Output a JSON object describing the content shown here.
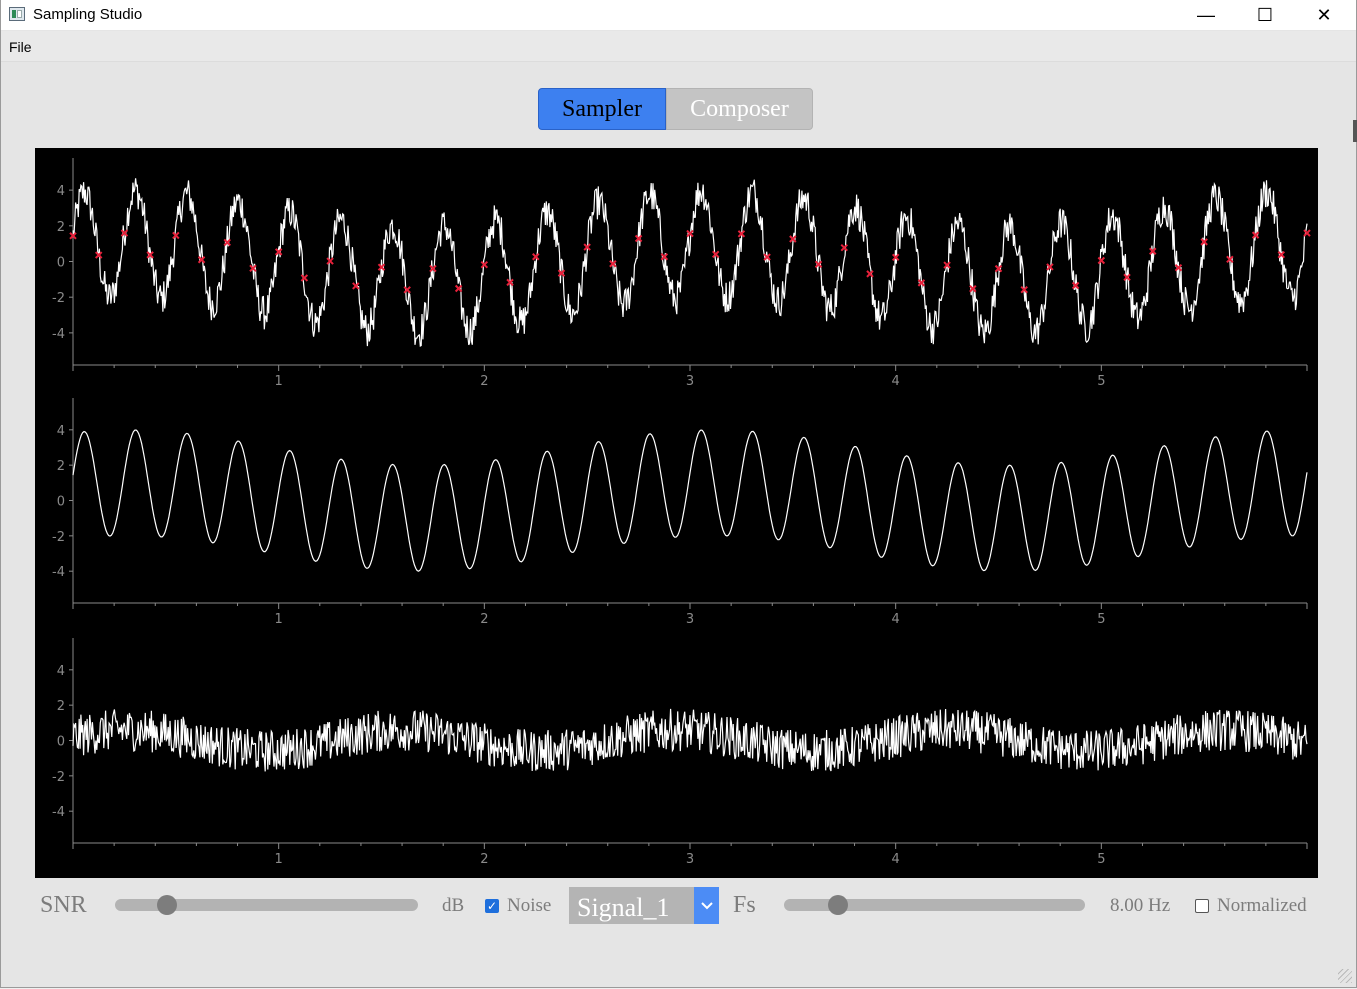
{
  "window": {
    "title": "Sampling Studio",
    "controls": {
      "minimize": "—",
      "maximize": "☐",
      "close": "✕"
    }
  },
  "menu": {
    "items": [
      "File"
    ]
  },
  "tabs": [
    {
      "label": "Sampler",
      "active": true
    },
    {
      "label": "Composer",
      "active": false
    }
  ],
  "colors": {
    "accent": "#3d80f0",
    "plot_bg": "#000000",
    "signal": "#ffffff",
    "samples": "#e8213b",
    "axis": "#8a8a8a"
  },
  "chart_data": [
    {
      "type": "line",
      "title": "",
      "xlabel": "",
      "ylabel": "",
      "xlim": [
        0,
        6.0
      ],
      "ylim": [
        -5.8,
        5.8
      ],
      "x_ticks": [
        1,
        2,
        3,
        4,
        5
      ],
      "y_ticks": [
        4,
        2,
        0,
        -2,
        -4
      ],
      "series": [
        {
          "signal": "sum of sinusoids + noise",
          "components": [
            {
              "amp": 3.0,
              "freq_hz": 4.0,
              "phase": 0.2
            },
            {
              "amp": 1.0,
              "freq_hz": 0.35,
              "phase": 1.0
            }
          ],
          "noise_amp": 1.2
        }
      ],
      "samples": {
        "rate_hz": 8.0,
        "marker": "x"
      }
    },
    {
      "type": "line",
      "title": "",
      "xlabel": "",
      "ylabel": "",
      "xlim": [
        0,
        6.0
      ],
      "ylim": [
        -5.8,
        5.8
      ],
      "x_ticks": [
        1,
        2,
        3,
        4,
        5
      ],
      "y_ticks": [
        4,
        2,
        0,
        -2,
        -4
      ],
      "series": [
        {
          "signal": "reconstructed",
          "components": [
            {
              "amp": 3.0,
              "freq_hz": 4.0,
              "phase": 0.2
            },
            {
              "amp": 1.0,
              "freq_hz": 0.35,
              "phase": 1.0
            }
          ],
          "noise_amp": 0
        }
      ]
    },
    {
      "type": "line",
      "title": "",
      "xlabel": "",
      "ylabel": "",
      "xlim": [
        0,
        6.0
      ],
      "ylim": [
        -5.8,
        5.8
      ],
      "x_ticks": [
        1,
        2,
        3,
        4,
        5
      ],
      "y_ticks": [
        4,
        2,
        0,
        -2,
        -4
      ],
      "series": [
        {
          "signal": "error",
          "components": [
            {
              "amp": 0.6,
              "freq_hz": 0.75,
              "phase": 0.3
            }
          ],
          "noise_amp": 1.5
        }
      ]
    }
  ],
  "controls": {
    "snr_label": "SNR",
    "snr_value": 0.17,
    "db_label": "dB",
    "noise_label": "Noise",
    "noise_checked": true,
    "signal_select": "Signal_1",
    "fs_label": "Fs",
    "fs_value": 0.18,
    "fs_readout": "8.00 Hz",
    "normalized_label": "Normalized",
    "normalized_checked": false
  },
  "icons": {
    "app": "app-window-icon",
    "dropdown": "chevron-down-icon"
  }
}
